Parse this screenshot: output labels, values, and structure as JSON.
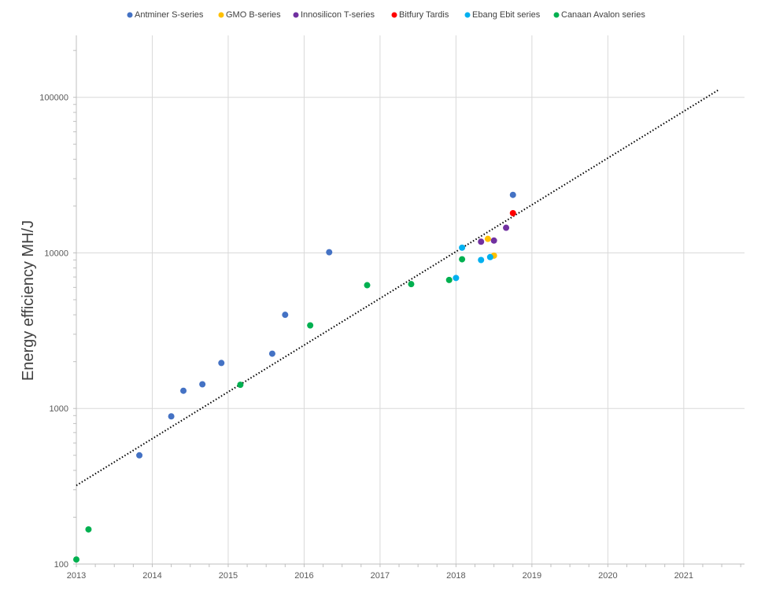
{
  "chart_data": {
    "type": "scatter",
    "ylabel": "Energy efficiency MH/J",
    "xlabel": "",
    "y_scale": "log",
    "ylim": [
      100,
      250000
    ],
    "xlim": [
      2013,
      2021.8
    ],
    "x_ticks": [
      2013,
      2014,
      2015,
      2016,
      2017,
      2018,
      2019,
      2020,
      2021
    ],
    "x_tick_labels": [
      "2013",
      "2014",
      "2015",
      "2016",
      "2017",
      "2018",
      "2019",
      "2020",
      "2021"
    ],
    "y_ticks": [
      100,
      1000,
      10000,
      100000
    ],
    "y_tick_labels": [
      "100",
      "1000",
      "10000",
      "100000"
    ],
    "grid": true,
    "legend_position": "top",
    "series": [
      {
        "name": "Antminer S-series",
        "color": "#4472C4",
        "points": [
          {
            "x": 2013.83,
            "y": 500
          },
          {
            "x": 2014.25,
            "y": 890
          },
          {
            "x": 2014.41,
            "y": 1300
          },
          {
            "x": 2014.66,
            "y": 1430
          },
          {
            "x": 2014.91,
            "y": 1960
          },
          {
            "x": 2015.58,
            "y": 2250
          },
          {
            "x": 2015.75,
            "y": 4000
          },
          {
            "x": 2016.33,
            "y": 10100
          },
          {
            "x": 2018.75,
            "y": 23600
          }
        ]
      },
      {
        "name": "GMO B-series",
        "color": "#FFC000",
        "points": [
          {
            "x": 2018.42,
            "y": 12300
          },
          {
            "x": 2018.5,
            "y": 9600
          }
        ]
      },
      {
        "name": "Innosilicon T-series",
        "color": "#7030A0",
        "points": [
          {
            "x": 2018.33,
            "y": 11800
          },
          {
            "x": 2018.5,
            "y": 12000
          },
          {
            "x": 2018.66,
            "y": 14500
          }
        ]
      },
      {
        "name": "Bitfury Tardis",
        "color": "#FF0000",
        "points": [
          {
            "x": 2018.75,
            "y": 18000
          }
        ]
      },
      {
        "name": "Ebang Ebit series",
        "color": "#00B0F0",
        "points": [
          {
            "x": 2018.0,
            "y": 6900
          },
          {
            "x": 2018.08,
            "y": 10800
          },
          {
            "x": 2018.33,
            "y": 9000
          },
          {
            "x": 2018.45,
            "y": 9400
          }
        ]
      },
      {
        "name": "Canaan Avalon series",
        "color": "#00B050",
        "points": [
          {
            "x": 2013.0,
            "y": 107
          },
          {
            "x": 2013.16,
            "y": 167
          },
          {
            "x": 2015.16,
            "y": 1420
          },
          {
            "x": 2016.08,
            "y": 3420
          },
          {
            "x": 2016.83,
            "y": 6200
          },
          {
            "x": 2017.41,
            "y": 6300
          },
          {
            "x": 2017.91,
            "y": 6700
          },
          {
            "x": 2018.08,
            "y": 9100
          }
        ]
      }
    ],
    "trendline": {
      "style": "dotted",
      "color": "#000000",
      "from": {
        "x": 2013.0,
        "y": 320
      },
      "to": {
        "x": 2021.45,
        "y": 111000
      }
    }
  }
}
